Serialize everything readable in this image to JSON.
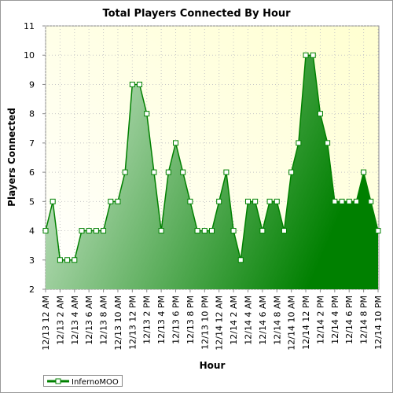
{
  "chart_data": {
    "type": "area",
    "title": "Total Players Connected By Hour",
    "x_label": "Hour",
    "y_label": "Players Connected",
    "categories": [
      "12/13 12 AM",
      null,
      "12/13 2 AM",
      null,
      "12/13 4 AM",
      null,
      "12/13 6 AM",
      null,
      "12/13 8 AM",
      null,
      "12/13 10 AM",
      null,
      "12/13 12 PM",
      null,
      "12/13 2 PM",
      null,
      "12/13 4 PM",
      null,
      "12/13 6 PM",
      null,
      "12/13 8 PM",
      null,
      "12/13 10 PM",
      null,
      "12/14 12 AM",
      null,
      "12/14 2 AM",
      null,
      "12/14 4 AM",
      null,
      "12/14 6 AM",
      null,
      "12/14 8 AM",
      null,
      "12/14 10 AM",
      null,
      "12/14 12 PM",
      null,
      "12/14 2 PM",
      null,
      "12/14 4 PM",
      null,
      "12/14 6 PM",
      null,
      "12/14 8 PM",
      null,
      "12/14 10 PM"
    ],
    "series": [
      {
        "name": "InfernoMOO",
        "color": "#008000",
        "values": [
          4,
          5,
          3,
          3,
          3,
          4,
          4,
          4,
          4,
          5,
          5,
          6,
          9,
          9,
          8,
          6,
          4,
          6,
          7,
          6,
          5,
          4,
          4,
          4,
          5,
          6,
          4,
          3,
          5,
          5,
          4,
          5,
          5,
          4,
          6,
          7,
          10,
          10,
          8,
          7,
          5,
          5,
          5,
          5,
          6,
          5,
          4
        ]
      }
    ],
    "ylim": [
      2,
      11
    ],
    "yticks": [
      2,
      3,
      4,
      5,
      6,
      7,
      8,
      9,
      10,
      11
    ],
    "grid": true,
    "legend": "bottom-left"
  }
}
